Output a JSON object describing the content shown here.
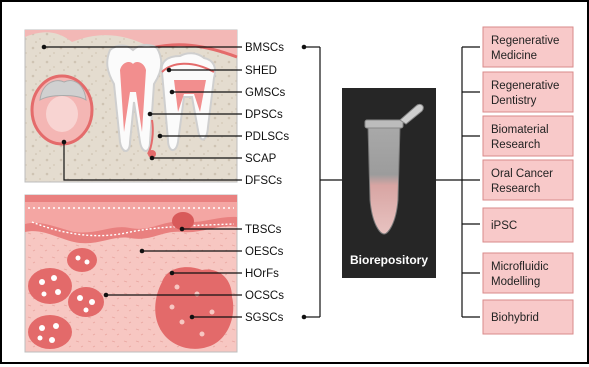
{
  "cell_types": [
    "BMSCs",
    "SHED",
    "GMSCs",
    "DPSCs",
    "PDLSCs",
    "SCAP",
    "DFSCs",
    "TBSCs",
    "OESCs",
    "HOrFs",
    "OCSCs",
    "SGSCs"
  ],
  "center": {
    "label": "Biorepository"
  },
  "applications": [
    {
      "line1": "Regenerative",
      "line2": "Medicine"
    },
    {
      "line1": "Regenerative",
      "line2": "Dentistry"
    },
    {
      "line1": "Biomaterial",
      "line2": "Research"
    },
    {
      "line1": "Oral Cancer",
      "line2": "Research"
    },
    {
      "line1": "iPSC",
      "line2": ""
    },
    {
      "line1": "Microfluidic",
      "line2": "Modelling"
    },
    {
      "line1": "Biohybrid",
      "line2": ""
    }
  ],
  "colors": {
    "box_fill": "#f8c9c9",
    "box_stroke": "#d98a8a",
    "repo_fill": "#262626",
    "tissue_pink": "#f2b3b0",
    "tissue_red": "#e36a6a",
    "bone": "#e2d9cc"
  }
}
